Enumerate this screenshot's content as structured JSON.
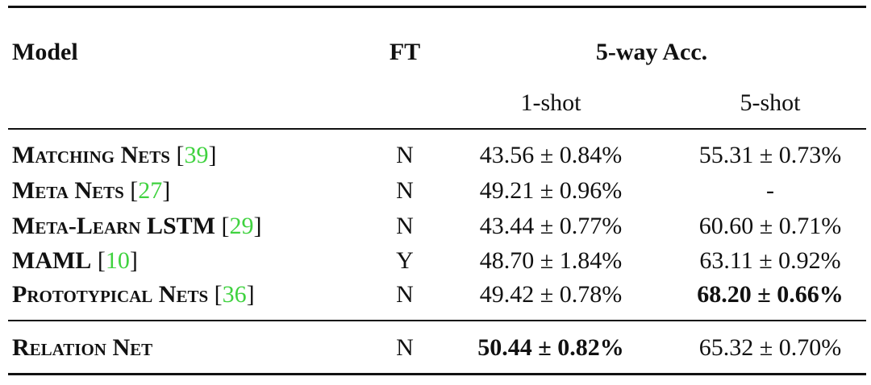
{
  "table": {
    "header": {
      "model": "Model",
      "ft": "FT",
      "group": "5-way Acc.",
      "one_shot": "1-shot",
      "five_shot": "5-shot"
    },
    "rows": [
      {
        "model": "Matching Nets",
        "cite": [
          "[",
          "39",
          "]"
        ],
        "ft": "N",
        "one_shot": "43.56 ± 0.84%",
        "five_shot": "55.31 ± 0.73%"
      },
      {
        "model": "Meta Nets",
        "cite": [
          "[",
          "27",
          "]"
        ],
        "ft": "N",
        "one_shot": "49.21 ± 0.96%",
        "five_shot": "-"
      },
      {
        "model": "Meta-Learn LSTM",
        "cite": [
          "[",
          "29",
          "]"
        ],
        "ft": "N",
        "one_shot": "43.44 ± 0.77%",
        "five_shot": "60.60 ± 0.71%"
      },
      {
        "model": "MAML",
        "cite": [
          "[",
          "10",
          "]"
        ],
        "ft": "Y",
        "one_shot": "48.70 ± 1.84%",
        "five_shot": "63.11 ± 0.92%"
      },
      {
        "model": "Prototypical Nets",
        "cite": [
          "[",
          "36",
          "]"
        ],
        "ft": "N",
        "one_shot": "49.42 ± 0.78%",
        "five_shot": "68.20 ± 0.66%"
      },
      {
        "model": "Relation Net",
        "ft": "N",
        "one_shot": "50.44 ± 0.82%",
        "five_shot": "65.32 ± 0.70%"
      }
    ]
  }
}
